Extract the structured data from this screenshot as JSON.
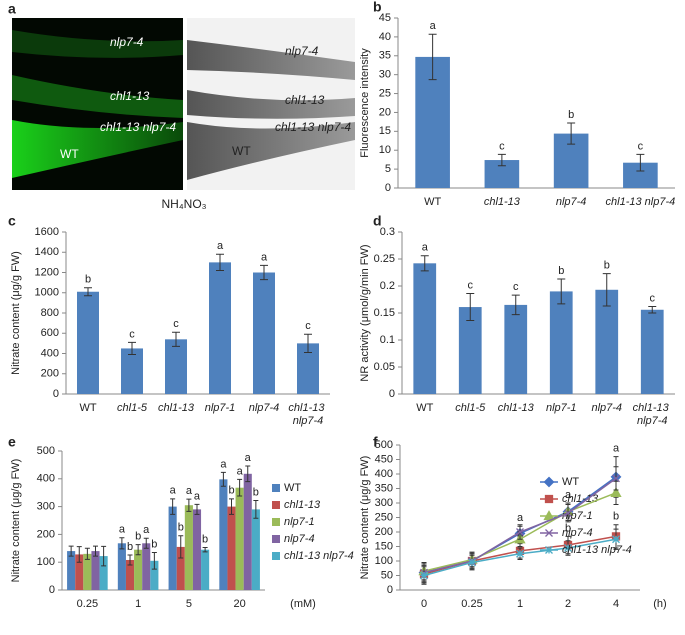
{
  "panel_a": {
    "letter": "a",
    "left_labels": [
      "nlp7-4",
      "chl1-13",
      "chl1-13 nlp7-4",
      "WT"
    ],
    "right_labels": [
      "nlp7-4",
      "chl1-13",
      "chl1-13 nlp7-4",
      "WT"
    ],
    "caption": "NH₄NO₃"
  },
  "chart_data": [
    {
      "type": "bar",
      "letter": "b",
      "ylabel": "Fluorescence intensity",
      "categories": [
        "WT",
        "chl1-13",
        "nlp7-4",
        "chl1-13 nlp7-4"
      ],
      "values": [
        34.7,
        7.4,
        14.4,
        6.7
      ],
      "errors": [
        6,
        1.5,
        2.8,
        2.2
      ],
      "letters": [
        "a",
        "c",
        "b",
        "c"
      ],
      "color": "#4f81bd",
      "ylim": [
        0,
        45
      ],
      "yticks": [
        0,
        5,
        10,
        15,
        20,
        25,
        30,
        35,
        40,
        45
      ]
    },
    {
      "type": "bar",
      "letter": "c",
      "ylabel": "Nitrate content (μg/g FW)",
      "categories": [
        "WT",
        "chl1-5",
        "chl1-13",
        "nlp7-1",
        "nlp7-4",
        "chl1-13 nlp7-4"
      ],
      "values": [
        1010,
        450,
        540,
        1300,
        1200,
        500
      ],
      "errors": [
        40,
        60,
        70,
        80,
        70,
        90
      ],
      "letters": [
        "b",
        "c",
        "c",
        "a",
        "a",
        "c"
      ],
      "color": "#4f81bd",
      "ylim": [
        0,
        1600
      ],
      "yticks": [
        0,
        200,
        400,
        600,
        800,
        1000,
        1200,
        1400,
        1600
      ]
    },
    {
      "type": "bar",
      "letter": "d",
      "ylabel": "NR activity (μmol/g/min FW)",
      "categories": [
        "WT",
        "chl1-5",
        "chl1-13",
        "nlp7-1",
        "nlp7-4",
        "chl1-13 nlp7-4"
      ],
      "values": [
        0.242,
        0.161,
        0.165,
        0.19,
        0.193,
        0.156
      ],
      "errors": [
        0.014,
        0.025,
        0.018,
        0.023,
        0.03,
        0.006
      ],
      "letters": [
        "a",
        "c",
        "c",
        "b",
        "b",
        "c"
      ],
      "color": "#4f81bd",
      "ylim": [
        0,
        0.3
      ],
      "yticks": [
        0,
        0.05,
        0.1,
        0.15,
        0.2,
        0.25,
        0.3
      ]
    },
    {
      "type": "bar",
      "letter": "e",
      "ylabel": "Nitrate content (μg/g FW)",
      "xunit": "(mM)",
      "categories": [
        "0.25",
        "1",
        "5",
        "20"
      ],
      "series": [
        {
          "name": "WT",
          "color": "#4f81bd",
          "values": [
            140,
            168,
            300,
            398
          ],
          "errors": [
            18,
            20,
            28,
            25
          ],
          "letters": [
            null,
            "a",
            "a",
            "a"
          ]
        },
        {
          "name": "chl1-13",
          "color": "#c0504d",
          "values": [
            128,
            108,
            155,
            300
          ],
          "errors": [
            28,
            18,
            40,
            28
          ],
          "letters": [
            null,
            "b",
            "b",
            "b"
          ]
        },
        {
          "name": "nlp7-1",
          "color": "#9bbb59",
          "values": [
            130,
            145,
            305,
            368
          ],
          "errors": [
            20,
            18,
            22,
            30
          ],
          "letters": [
            null,
            "b",
            "a",
            "a"
          ]
        },
        {
          "name": "nlp7-4",
          "color": "#8064a2",
          "values": [
            140,
            168,
            290,
            418
          ],
          "errors": [
            18,
            18,
            18,
            28
          ],
          "letters": [
            null,
            "a",
            "a",
            "a"
          ]
        },
        {
          "name": "chl1-13 nlp7-4",
          "color": "#4bacc6",
          "values": [
            122,
            105,
            145,
            290
          ],
          "errors": [
            35,
            30,
            8,
            32
          ],
          "letters": [
            null,
            "b",
            "b",
            "b"
          ]
        }
      ],
      "ylim": [
        0,
        500
      ],
      "yticks": [
        0,
        100,
        200,
        300,
        400,
        500
      ],
      "legend": "right"
    },
    {
      "type": "line",
      "letter": "f",
      "ylabel": "Nitrate content (μg/g FW)",
      "xunit": "(h)",
      "categories": [
        "0",
        "0.25",
        "1",
        "2",
        "4"
      ],
      "series": [
        {
          "name": "WT",
          "color": "#4472c4",
          "values": [
            60,
            100,
            195,
            270,
            390
          ],
          "errors": [
            35,
            30,
            25,
            30,
            70
          ],
          "letters": [
            null,
            null,
            "a",
            "a",
            "a"
          ]
        },
        {
          "name": "chl1-13",
          "color": "#c0504d",
          "values": [
            55,
            100,
            135,
            155,
            185
          ],
          "errors": [
            30,
            25,
            25,
            30,
            40
          ],
          "letters": [
            null,
            null,
            "b",
            "b",
            "b"
          ]
        },
        {
          "name": "nlp7-1",
          "color": "#9bbb59",
          "values": [
            65,
            105,
            175,
            270,
            335
          ],
          "errors": [
            30,
            25,
            25,
            30,
            40
          ],
          "letters": [
            null,
            null,
            null,
            null,
            null
          ]
        },
        {
          "name": "nlp7-4",
          "color": "#8064a2",
          "values": [
            60,
            100,
            200,
            265,
            385
          ],
          "errors": [
            30,
            25,
            25,
            30,
            40
          ],
          "letters": [
            null,
            null,
            null,
            null,
            null
          ]
        },
        {
          "name": "chl1-13 nlp7-4",
          "color": "#4bacc6",
          "values": [
            50,
            95,
            125,
            145,
            175
          ],
          "errors": [
            30,
            25,
            20,
            25,
            35
          ],
          "letters": [
            null,
            null,
            null,
            null,
            null
          ]
        }
      ],
      "ylim": [
        0,
        500
      ],
      "yticks": [
        0,
        50,
        100,
        150,
        200,
        250,
        300,
        350,
        400,
        450,
        500
      ],
      "legend": "right"
    }
  ]
}
